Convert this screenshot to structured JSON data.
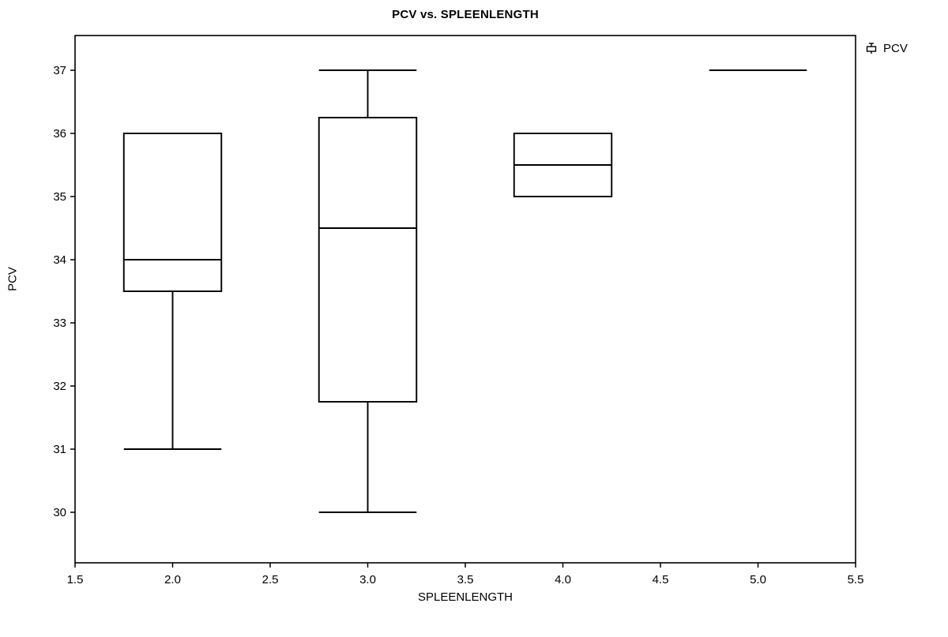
{
  "chart_data": {
    "type": "boxplot",
    "title": "PCV vs. SPLEENLENGTH",
    "xlabel": "SPLEENLENGTH",
    "ylabel": "PCV",
    "legend_label": "PCV",
    "legend_position": "top-right-outside",
    "grid": false,
    "xlim": [
      1.5,
      5.5
    ],
    "ylim": [
      29.2,
      37.55
    ],
    "x_ticks": [
      1.5,
      2.0,
      2.5,
      3.0,
      3.5,
      4.0,
      4.5,
      5.0,
      5.5
    ],
    "x_tick_labels": [
      "1.5",
      "2.0",
      "2.5",
      "3.0",
      "3.5",
      "4.0",
      "4.5",
      "5.0",
      "5.5"
    ],
    "y_ticks": [
      30,
      31,
      32,
      33,
      34,
      35,
      36,
      37
    ],
    "y_tick_labels": [
      "30",
      "31",
      "32",
      "33",
      "34",
      "35",
      "36",
      "37"
    ],
    "box_half_width": 0.25,
    "line_color": "#000000",
    "box_fill": "none",
    "series": [
      {
        "x": 2.0,
        "whisker_low": 31.0,
        "q1": 33.5,
        "median": 34.0,
        "q3": 36.0,
        "whisker_high": 36.0
      },
      {
        "x": 3.0,
        "whisker_low": 30.0,
        "q1": 31.75,
        "median": 34.5,
        "q3": 36.25,
        "whisker_high": 37.0
      },
      {
        "x": 4.0,
        "whisker_low": 35.0,
        "q1": 35.0,
        "median": 35.5,
        "q3": 36.0,
        "whisker_high": 36.0
      },
      {
        "x": 5.0,
        "whisker_low": 37.0,
        "q1": 37.0,
        "median": 37.0,
        "q3": 37.0,
        "whisker_high": 37.0
      }
    ]
  }
}
